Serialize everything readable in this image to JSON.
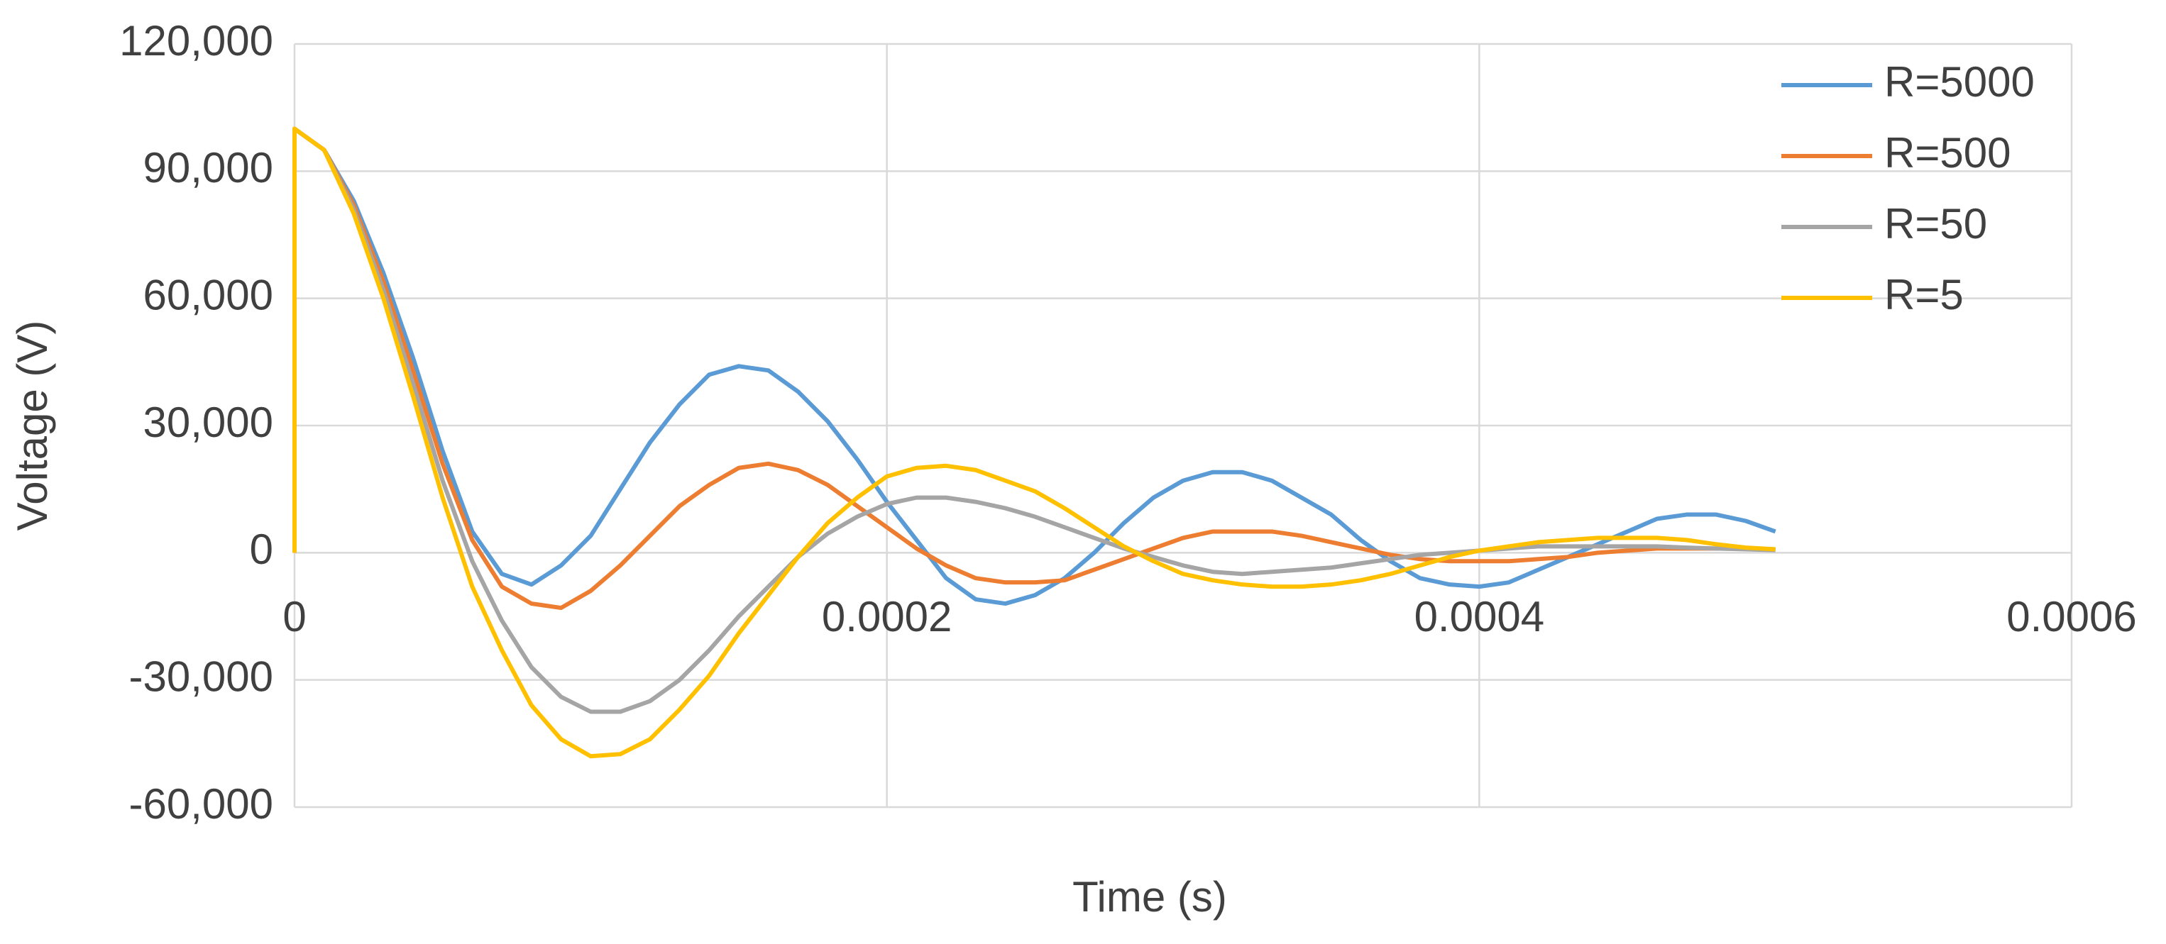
{
  "chart_data": {
    "type": "line",
    "x_label": "Time (s)",
    "y_label": "Voltage (V)",
    "x": [
      0,
      0,
      1e-05,
      2e-05,
      3e-05,
      4e-05,
      5e-05,
      6e-05,
      7e-05,
      8e-05,
      9e-05,
      0.0001,
      0.00011,
      0.00012,
      0.00013,
      0.00014,
      0.00015,
      0.00016,
      0.00017,
      0.00018,
      0.00019,
      0.0002,
      0.00021,
      0.00022,
      0.00023,
      0.00024,
      0.00025,
      0.00026,
      0.00027,
      0.00028,
      0.00029,
      0.0003,
      0.00031,
      0.00032,
      0.00033,
      0.00034,
      0.00035,
      0.00036,
      0.00037,
      0.00038,
      0.00039,
      0.0004,
      0.00041,
      0.00042,
      0.00043,
      0.00044,
      0.00045,
      0.00046,
      0.00047,
      0.00048,
      0.00049,
      0.0005
    ],
    "series": [
      {
        "name": "R=5000",
        "color": "#5b9bd5",
        "values": [
          0,
          100000,
          95000,
          83000,
          66000,
          46000,
          24000,
          5000,
          -5000,
          -7500,
          -3000,
          4000,
          15000,
          26000,
          35000,
          42000,
          44000,
          43000,
          38000,
          31000,
          22000,
          12000,
          3000,
          -6000,
          -11000,
          -12000,
          -10000,
          -6000,
          0,
          7000,
          13000,
          17000,
          19000,
          19000,
          17000,
          13000,
          9000,
          3000,
          -2000,
          -6000,
          -7500,
          -8000,
          -7000,
          -4000,
          -1000,
          2000,
          5000,
          8000,
          9000,
          9000,
          7500,
          5000
        ]
      },
      {
        "name": "R=500",
        "color": "#ed7d31",
        "values": [
          0,
          100000,
          95000,
          82000,
          64000,
          43000,
          21000,
          3000,
          -8000,
          -12000,
          -13000,
          -9000,
          -3000,
          4000,
          11000,
          16000,
          20000,
          21000,
          19500,
          16000,
          11000,
          6000,
          1000,
          -3000,
          -6000,
          -7000,
          -7000,
          -6500,
          -4000,
          -1500,
          1000,
          3500,
          5000,
          5000,
          5000,
          4000,
          2500,
          1000,
          -500,
          -1500,
          -2000,
          -2000,
          -2000,
          -1500,
          -1000,
          0,
          500,
          1000,
          1000,
          1000,
          1000,
          800
        ]
      },
      {
        "name": "R=50",
        "color": "#a5a5a5",
        "values": [
          0,
          100000,
          95000,
          81000,
          62000,
          40000,
          17000,
          -2000,
          -16000,
          -27000,
          -34000,
          -37500,
          -37500,
          -35000,
          -30000,
          -23000,
          -15000,
          -8000,
          -1000,
          4500,
          8500,
          11500,
          13000,
          13000,
          12000,
          10500,
          8500,
          6000,
          3500,
          1000,
          -1000,
          -3000,
          -4500,
          -5000,
          -4500,
          -4000,
          -3500,
          -2500,
          -1500,
          -500,
          0,
          500,
          1000,
          1500,
          1500,
          1500,
          1500,
          1500,
          1200,
          1000,
          800,
          600
        ]
      },
      {
        "name": "R=5",
        "color": "#ffc000",
        "values": [
          0,
          100000,
          95000,
          80000,
          60000,
          37000,
          13000,
          -8000,
          -23000,
          -36000,
          -44000,
          -48000,
          -47500,
          -44000,
          -37000,
          -29000,
          -19000,
          -10000,
          -1000,
          7000,
          13000,
          18000,
          20000,
          20500,
          19500,
          17000,
          14500,
          10500,
          6000,
          1500,
          -2000,
          -5000,
          -6500,
          -7500,
          -8000,
          -8000,
          -7500,
          -6500,
          -5000,
          -3000,
          -1000,
          500,
          1500,
          2500,
          3000,
          3500,
          3500,
          3500,
          3000,
          2000,
          1200,
          800
        ]
      }
    ],
    "xlim": [
      0,
      0.0006
    ],
    "xticks": [
      0,
      0.0002,
      0.0004,
      0.0006
    ],
    "ylim": [
      -60000,
      120000
    ],
    "yticks": [
      {
        "value": -60000,
        "label": "-60,000"
      },
      {
        "value": -30000,
        "label": "-30,000"
      },
      0,
      {
        "value": 30000,
        "label": "30,000"
      },
      {
        "value": 60000,
        "label": "60,000"
      },
      {
        "value": 90000,
        "label": "90,000"
      },
      {
        "value": 120000,
        "label": "120,000"
      }
    ],
    "grid": true,
    "legend": "top-right"
  }
}
